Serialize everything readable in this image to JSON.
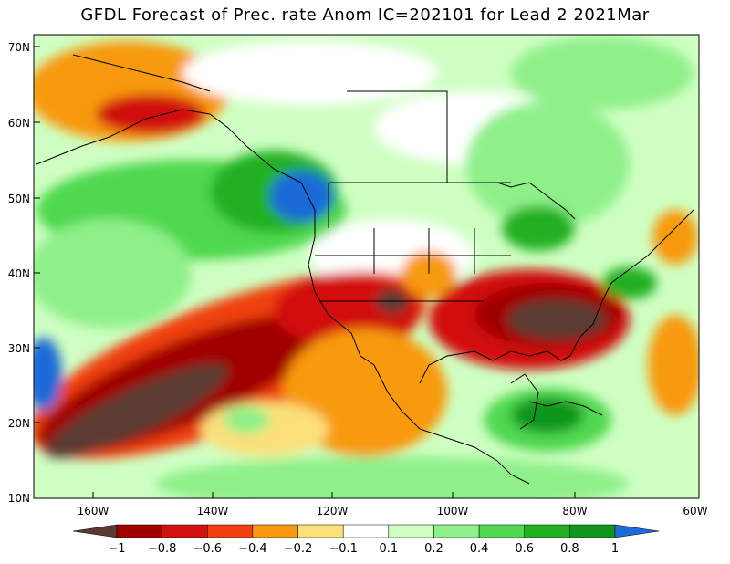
{
  "title": "GFDL Forecast of Prec. rate Anom IC=202101 for Lead 2 2021Mar",
  "map": {
    "lat_labels": [
      "70N",
      "60N",
      "50N",
      "40N",
      "30N",
      "20N",
      "10N"
    ],
    "lon_labels": [
      "160W",
      "140W",
      "120W",
      "100W",
      "80W",
      "60W"
    ],
    "lat_range": [
      10,
      72
    ],
    "lon_range": [
      -172,
      -60
    ]
  },
  "colorbar": {
    "labels": [
      "−1",
      "−0.8",
      "−0.6",
      "−0.4",
      "−0.2",
      "−0.1",
      "0.1",
      "0.2",
      "0.4",
      "0.6",
      "0.8",
      "1"
    ],
    "colors": [
      "#5a3a32",
      "#a00000",
      "#d21010",
      "#f04010",
      "#f89a10",
      "#fce07a",
      "#ffffff",
      "#cfffc3",
      "#8ff08a",
      "#50d850",
      "#20b020",
      "#10961e",
      "#1e6ad8"
    ]
  }
}
